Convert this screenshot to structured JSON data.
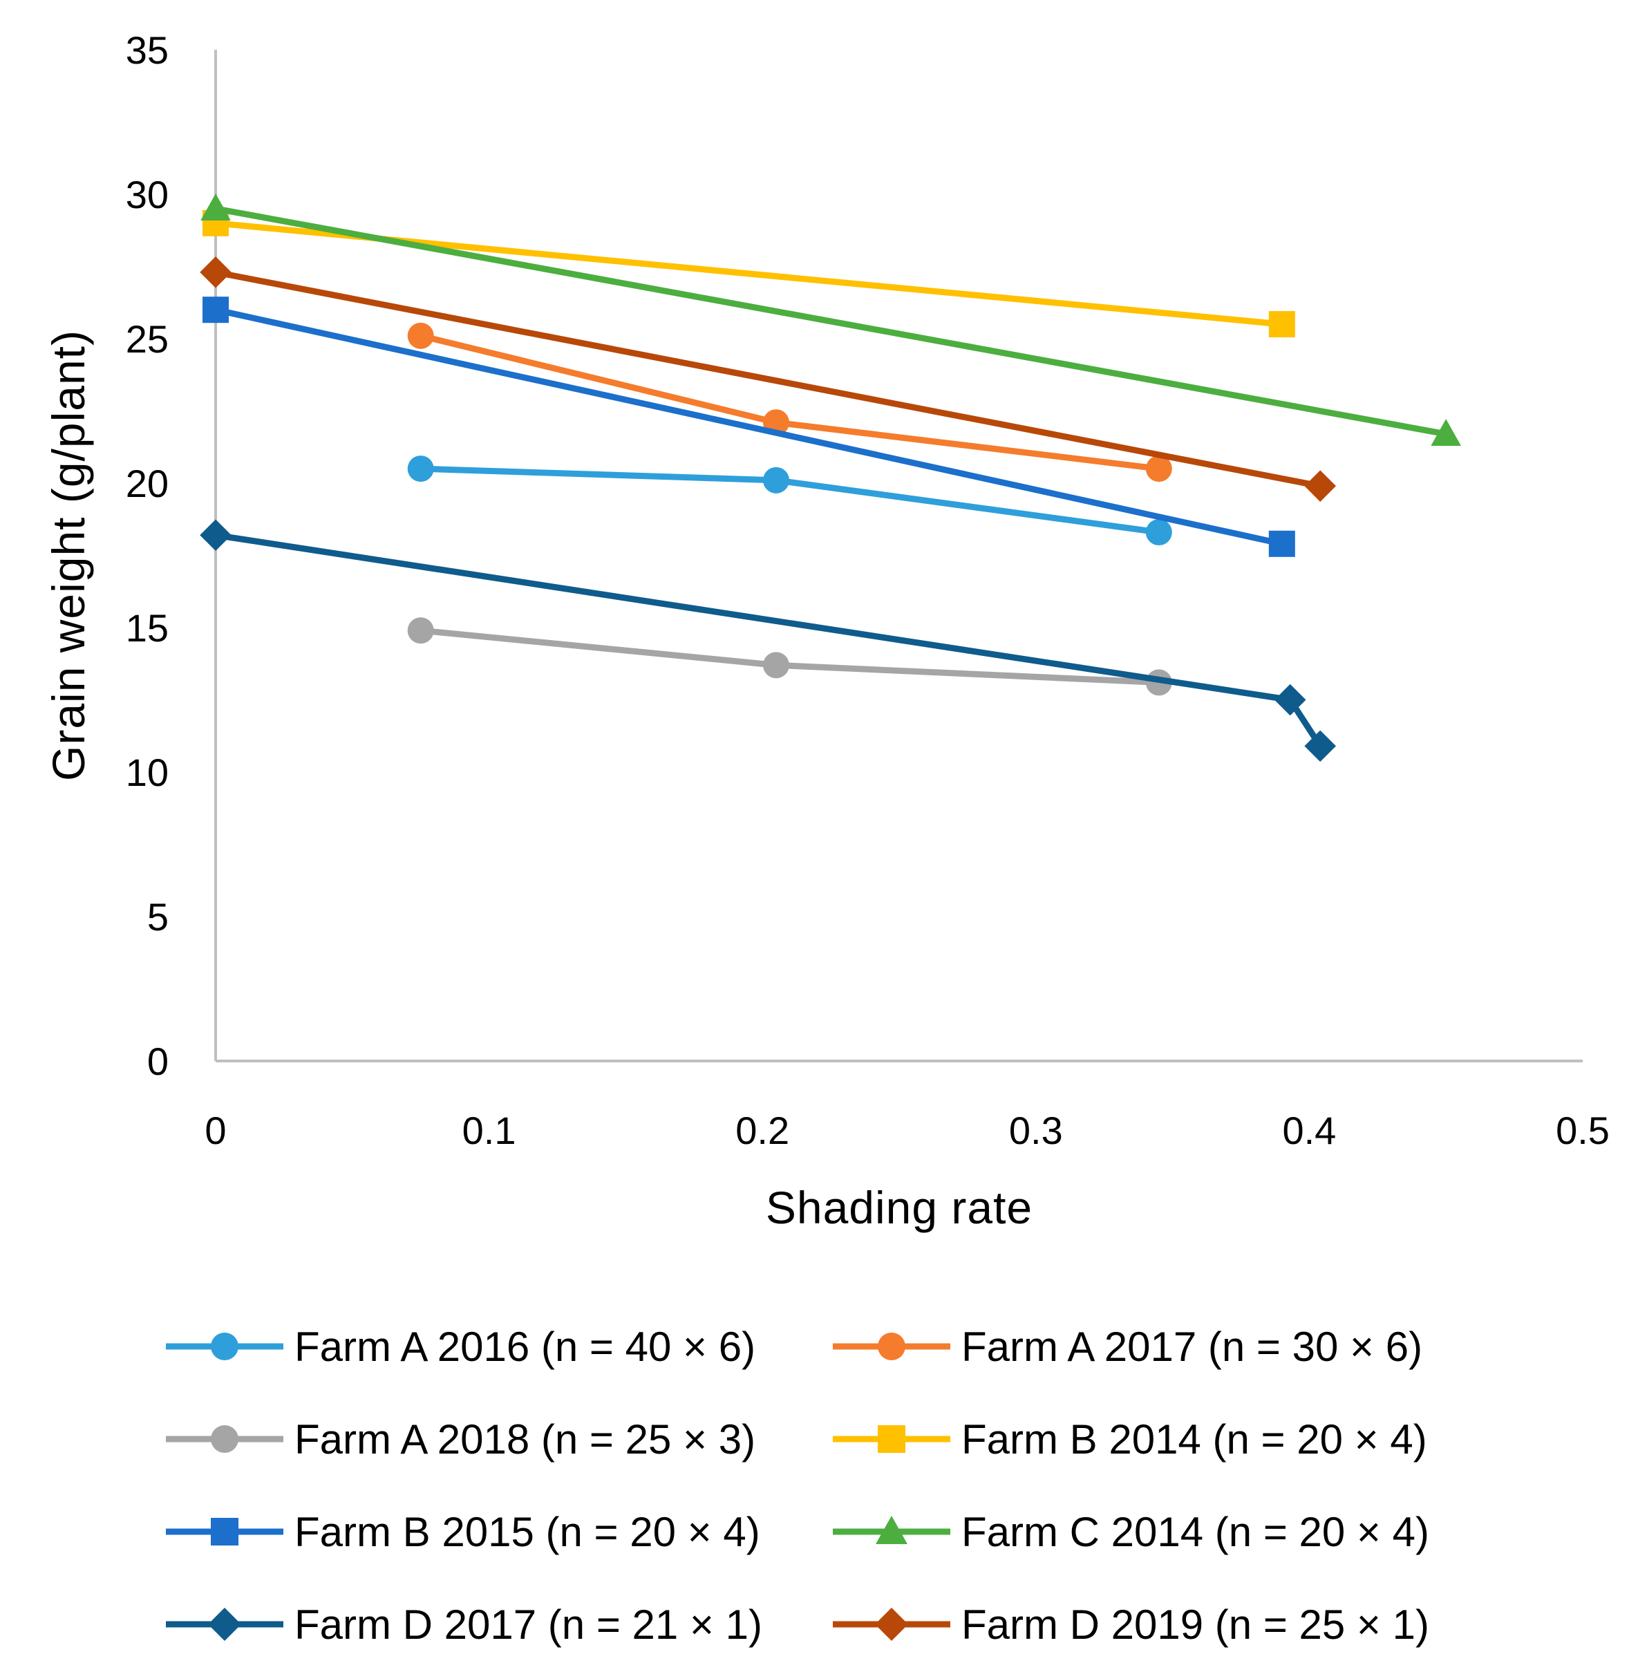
{
  "chart_data": {
    "type": "line",
    "title": "",
    "xlabel": "Shading rate",
    "ylabel": "Grain weight (g/plant)",
    "xlim": [
      0,
      0.5
    ],
    "ylim": [
      0,
      35
    ],
    "xticks": [
      0,
      0.1,
      0.2,
      0.3,
      0.4,
      0.5
    ],
    "xtick_labels": [
      "0",
      "0.1",
      "0.2",
      "0.3",
      "0.4",
      "0.5"
    ],
    "yticks": [
      0,
      5,
      10,
      15,
      20,
      25,
      30,
      35
    ],
    "ytick_labels": [
      "0",
      "5",
      "10",
      "15",
      "20",
      "25",
      "30",
      "35"
    ],
    "grid": false,
    "legend_position": "bottom",
    "series": [
      {
        "name": "Farm A 2016 (n = 40 × 6)",
        "color": "#2E9FDB",
        "marker": "circle",
        "x": [
          0.075,
          0.205,
          0.345
        ],
        "y": [
          20.5,
          20.1,
          18.3
        ]
      },
      {
        "name": "Farm A 2017 (n = 30 × 6)",
        "color": "#F47C2C",
        "marker": "circle",
        "x": [
          0.075,
          0.205,
          0.345
        ],
        "y": [
          25.1,
          22.1,
          20.5
        ]
      },
      {
        "name": "Farm A 2018 (n = 25 × 3)",
        "color": "#A5A5A5",
        "marker": "circle",
        "x": [
          0.075,
          0.205,
          0.345
        ],
        "y": [
          14.9,
          13.7,
          13.1
        ]
      },
      {
        "name": "Farm B 2014 (n = 20 × 4)",
        "color": "#FFC000",
        "marker": "square",
        "x": [
          0,
          0.39
        ],
        "y": [
          29.0,
          25.5
        ]
      },
      {
        "name": "Farm B 2015 (n = 20 × 4)",
        "color": "#1C6FCB",
        "marker": "square",
        "x": [
          0,
          0.39
        ],
        "y": [
          26.0,
          17.9
        ]
      },
      {
        "name": "Farm C 2014 (n = 20 × 4)",
        "color": "#4CAE3F",
        "marker": "triangle",
        "x": [
          0,
          0.45
        ],
        "y": [
          29.5,
          21.7
        ]
      },
      {
        "name": "Farm D 2017 (n = 21 × 1)",
        "color": "#0F5B8C",
        "marker": "diamond",
        "x": [
          0,
          0.393,
          0.404
        ],
        "y": [
          18.2,
          12.5,
          10.9
        ]
      },
      {
        "name": "Farm D 2019 (n = 25 × 1)",
        "color": "#B84808",
        "marker": "diamond",
        "x": [
          0,
          0.404
        ],
        "y": [
          27.3,
          19.9
        ]
      }
    ]
  }
}
